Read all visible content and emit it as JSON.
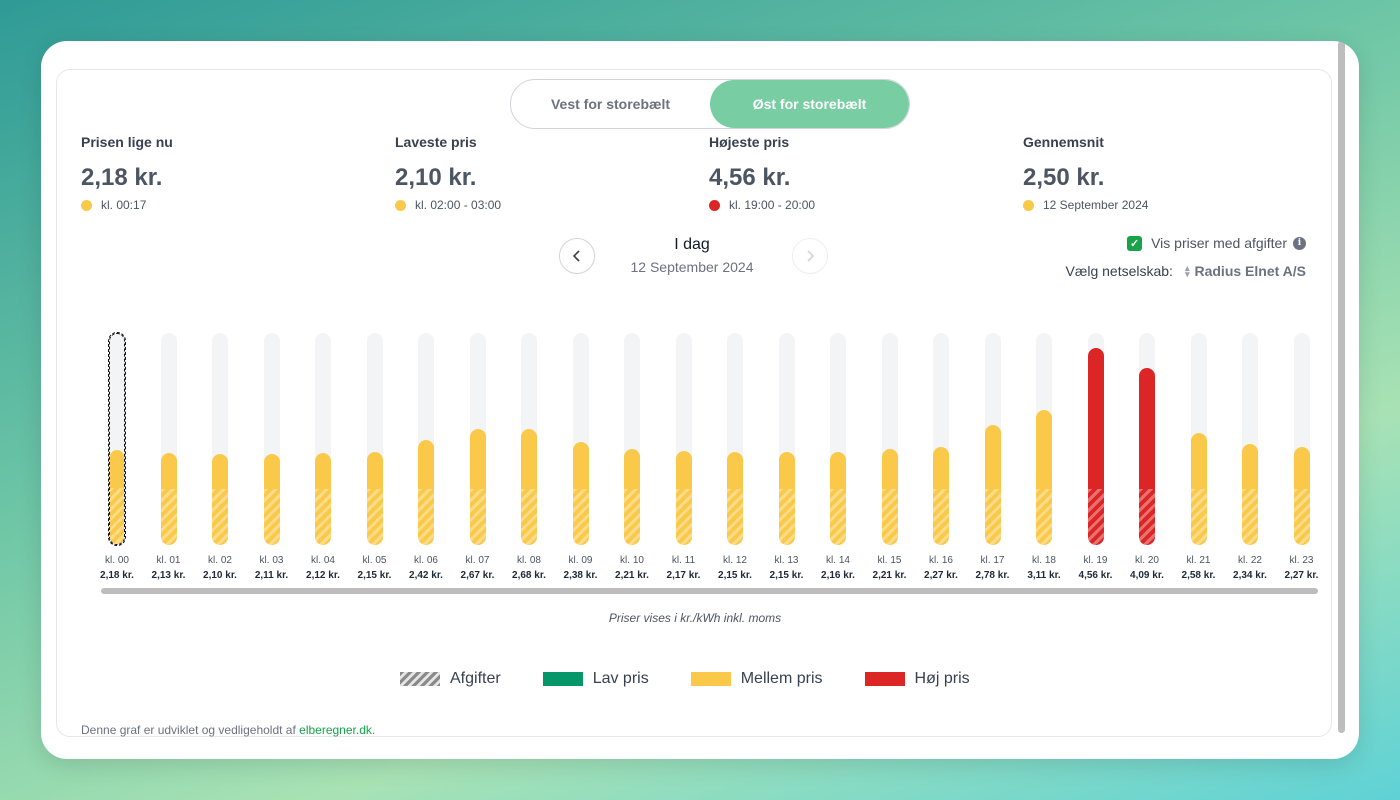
{
  "tabs": [
    {
      "label": "Vest for storebælt",
      "active": false
    },
    {
      "label": "Øst for storebælt",
      "active": true
    }
  ],
  "stats": [
    {
      "label": "Prisen lige nu",
      "value": "2,18 kr.",
      "sub": "kl. 00:17",
      "color": "#fbc94a"
    },
    {
      "label": "Laveste pris",
      "value": "2,10 kr.",
      "sub": "kl. 02:00 - 03:00",
      "color": "#fbc94a"
    },
    {
      "label": "Højeste pris",
      "value": "4,56 kr.",
      "sub": "kl. 19:00 - 20:00",
      "color": "#dc2626"
    },
    {
      "label": "Gennemsnit",
      "value": "2,50 kr.",
      "sub": "12 September 2024",
      "color": "#fbc94a"
    }
  ],
  "day": {
    "title": "I dag",
    "date": "12 September 2024",
    "prev_icon": "chevron-left-icon",
    "next_icon": "chevron-right-icon"
  },
  "options": {
    "show_taxes_label": "Vis priser med afgifter",
    "show_taxes_checked": true,
    "info_icon": "info-icon",
    "network_label": "Vælg netselskab:",
    "network_value": "Radius Elnet A/S"
  },
  "chart_data": {
    "type": "bar",
    "categories": [
      "kl. 00",
      "kl. 01",
      "kl. 02",
      "kl. 03",
      "kl. 04",
      "kl. 05",
      "kl. 06",
      "kl. 07",
      "kl. 08",
      "kl. 09",
      "kl. 10",
      "kl. 11",
      "kl. 12",
      "kl. 13",
      "kl. 14",
      "kl. 15",
      "kl. 16",
      "kl. 17",
      "kl. 18",
      "kl. 19",
      "kl. 20",
      "kl. 21",
      "kl. 22",
      "kl. 23"
    ],
    "values": [
      2.18,
      2.13,
      2.1,
      2.11,
      2.12,
      2.15,
      2.42,
      2.67,
      2.68,
      2.38,
      2.21,
      2.17,
      2.15,
      2.15,
      2.16,
      2.21,
      2.27,
      2.78,
      3.11,
      4.56,
      4.09,
      2.58,
      2.34,
      2.27
    ],
    "value_labels": [
      "2,18 kr.",
      "2,13 kr.",
      "2,10 kr.",
      "2,11 kr.",
      "2,12 kr.",
      "2,15 kr.",
      "2,42 kr.",
      "2,67 kr.",
      "2,68 kr.",
      "2,38 kr.",
      "2,21 kr.",
      "2,17 kr.",
      "2,15 kr.",
      "2,15 kr.",
      "2,16 kr.",
      "2,21 kr.",
      "2,27 kr.",
      "2,78 kr.",
      "3,11 kr.",
      "4,56 kr.",
      "4,09 kr.",
      "2,58 kr.",
      "2,34 kr.",
      "2,27 kr."
    ],
    "price_level": [
      "mid",
      "mid",
      "mid",
      "mid",
      "mid",
      "mid",
      "mid",
      "mid",
      "mid",
      "mid",
      "mid",
      "mid",
      "mid",
      "mid",
      "mid",
      "mid",
      "mid",
      "mid",
      "mid",
      "high",
      "high",
      "mid",
      "mid",
      "mid"
    ],
    "taxes_approx": 1.3,
    "ylim": [
      0,
      4.9
    ],
    "selected_index": 0,
    "note": "Priser vises i kr./kWh inkl. moms",
    "colors": {
      "low": "#059669",
      "mid": "#fbc94a",
      "high": "#dc2626"
    }
  },
  "legend": [
    {
      "label": "Afgifter",
      "key": "taxes"
    },
    {
      "label": "Lav pris",
      "key": "low",
      "color": "#059669"
    },
    {
      "label": "Mellem pris",
      "key": "mid",
      "color": "#fbc94a"
    },
    {
      "label": "Høj pris",
      "key": "high",
      "color": "#dc2626"
    }
  ],
  "footer": {
    "text": "Denne graf er udviklet og vedligeholdt af ",
    "link": "elberegner.dk",
    "suffix": "."
  }
}
